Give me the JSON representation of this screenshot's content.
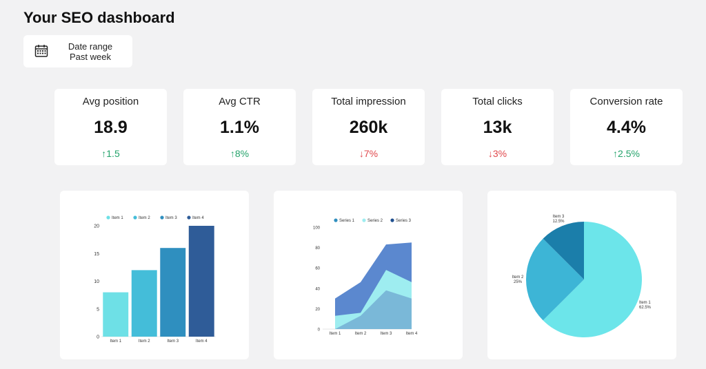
{
  "header": {
    "title": "Your SEO dashboard"
  },
  "date_filter": {
    "label": "Date range",
    "value": "Past week",
    "icon": "calendar-icon"
  },
  "kpis": [
    {
      "label": "Avg position",
      "value": "18.9",
      "delta": "↑1.5",
      "trend": "up"
    },
    {
      "label": "Avg CTR",
      "value": "1.1%",
      "delta": "↑8%",
      "trend": "up"
    },
    {
      "label": "Total impression",
      "value": "260k",
      "delta": "↓7%",
      "trend": "down"
    },
    {
      "label": "Total clicks",
      "value": "13k",
      "delta": "↓3%",
      "trend": "down"
    },
    {
      "label": "Conversion rate",
      "value": "4.4%",
      "delta": "↑2.5%",
      "trend": "up"
    }
  ],
  "colors": {
    "up": "#24a36b",
    "down": "#e0484c"
  },
  "chart_data": [
    {
      "type": "bar",
      "categories": [
        "Item 1",
        "Item 2",
        "Item 3",
        "Item 4"
      ],
      "values": [
        8,
        12,
        16,
        20
      ],
      "legend": [
        "Item 1",
        "Item 2",
        "Item 3",
        "Item 4"
      ],
      "colors": [
        "#6ee0e6",
        "#44bdd9",
        "#2f8fbf",
        "#2f5c98"
      ],
      "ylim": [
        0,
        20
      ],
      "yticks": [
        0,
        5,
        10,
        15,
        20
      ]
    },
    {
      "type": "area",
      "categories": [
        "Item 1",
        "Item 2",
        "Item 3",
        "Item 4"
      ],
      "series": [
        {
          "name": "Series 1",
          "values": [
            0,
            13,
            38,
            30
          ],
          "color": "#7ab8d8"
        },
        {
          "name": "Series 2",
          "values": [
            13,
            16,
            58,
            46
          ],
          "color": "#9eedf0"
        },
        {
          "name": "Series 3",
          "values": [
            30,
            46,
            83,
            85
          ],
          "color": "#5b88cf"
        }
      ],
      "legend_colors": [
        "#2f8fbf",
        "#9eedf0",
        "#1f4f8f"
      ],
      "ylim": [
        0,
        100
      ],
      "yticks": [
        0,
        20,
        40,
        60,
        80,
        100
      ]
    },
    {
      "type": "pie",
      "slices": [
        {
          "label": "Item 1",
          "value": 62.5,
          "pct": "62.5%",
          "color": "#6ce5ea"
        },
        {
          "label": "Item 2",
          "value": 25,
          "pct": "25%",
          "color": "#3db5d6"
        },
        {
          "label": "Item 3",
          "value": 12.5,
          "pct": "12.5%",
          "color": "#1b7eaa"
        }
      ]
    }
  ]
}
